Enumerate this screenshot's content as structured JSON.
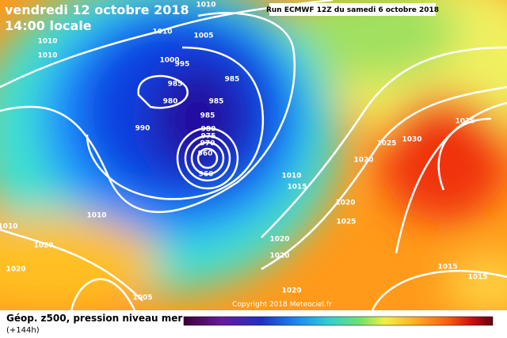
{
  "header": {
    "date": "vendredi 12 octobre 2018",
    "time": "14:00 locale",
    "run": "Run ECMWF 12Z du samedi 6 octobre 2018"
  },
  "copyright": "Copyright 2018 Meteociel.fr",
  "legend": {
    "title": "Géop. z500, pression niveau mer",
    "lead": "(+144h)"
  },
  "isobar_labels": [
    "1010",
    "1010",
    "1010",
    "1010",
    "1005",
    "1000",
    "995",
    "985",
    "985",
    "980",
    "985",
    "990",
    "985",
    "980",
    "975",
    "970",
    "960",
    "960",
    "1010",
    "1015",
    "1010",
    "1010",
    "1020",
    "1020",
    "1020",
    "1025",
    "1030",
    "1035",
    "1020",
    "1025",
    "1020",
    "1020",
    "1015",
    "1015",
    "1005",
    "1020"
  ]
}
